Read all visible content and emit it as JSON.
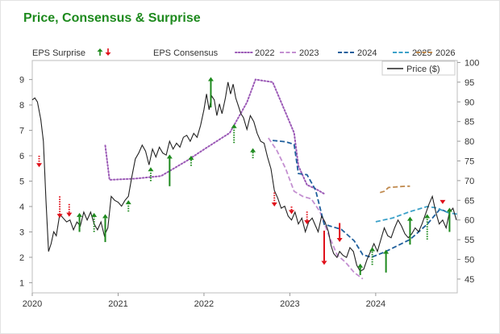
{
  "chart_data": {
    "type": "line",
    "title": "Price, Consensus & Surprise",
    "x_tick_labels": [
      "2020",
      "2021",
      "2022",
      "2023",
      "2024"
    ],
    "x_range": [
      2020.0,
      2024.95
    ],
    "eps_axis": {
      "range": [
        0.6,
        9.75
      ],
      "ticks": [
        1,
        2,
        3,
        4,
        5,
        6,
        7,
        8,
        9
      ]
    },
    "price_axis": {
      "range": [
        41.5,
        100.5
      ],
      "ticks": [
        45,
        50,
        55,
        60,
        65,
        70,
        75,
        80,
        85,
        90,
        95,
        100
      ]
    },
    "legend": {
      "surprise_label": "EPS Surprise",
      "consensus_label": "EPS Consensus",
      "price_label": "Price ($)",
      "up_color": "#1e8a1e",
      "down_color": "#e0101a"
    },
    "consensus_series": [
      {
        "name": "2022",
        "color": "#9b59b6",
        "dash": "dot",
        "points": [
          [
            2020.85,
            6.4
          ],
          [
            2020.9,
            5.05
          ],
          [
            2021.2,
            5.1
          ],
          [
            2021.5,
            5.2
          ],
          [
            2021.8,
            5.8
          ],
          [
            2022.0,
            6.25
          ],
          [
            2022.3,
            6.9
          ],
          [
            2022.5,
            8.1
          ],
          [
            2022.6,
            9.0
          ],
          [
            2022.8,
            8.9
          ],
          [
            2022.95,
            7.7
          ],
          [
            2023.05,
            6.9
          ],
          [
            2023.1,
            5.6
          ],
          [
            2023.2,
            4.85
          ],
          [
            2023.3,
            4.7
          ],
          [
            2023.4,
            4.5
          ]
        ]
      },
      {
        "name": "2023",
        "color": "#c490d1",
        "dash": "dash",
        "points": [
          [
            2022.75,
            6.7
          ],
          [
            2022.85,
            6.2
          ],
          [
            2022.95,
            5.5
          ],
          [
            2023.05,
            4.6
          ],
          [
            2023.15,
            4.4
          ],
          [
            2023.25,
            4.3
          ],
          [
            2023.35,
            3.8
          ],
          [
            2023.45,
            2.9
          ],
          [
            2023.55,
            2.1
          ],
          [
            2023.65,
            1.8
          ],
          [
            2023.75,
            1.4
          ],
          [
            2023.85,
            1.15
          ]
        ]
      },
      {
        "name": "2024",
        "color": "#1f5f9c",
        "dash": "dash",
        "points": [
          [
            2022.8,
            6.6
          ],
          [
            2022.95,
            6.55
          ],
          [
            2023.05,
            6.45
          ],
          [
            2023.1,
            5.3
          ],
          [
            2023.2,
            5.25
          ],
          [
            2023.3,
            4.65
          ],
          [
            2023.4,
            3.3
          ],
          [
            2023.6,
            3.1
          ],
          [
            2023.75,
            2.65
          ],
          [
            2023.85,
            2.1
          ],
          [
            2023.95,
            2.0
          ],
          [
            2024.1,
            2.2
          ],
          [
            2024.4,
            2.7
          ],
          [
            2024.6,
            3.3
          ],
          [
            2024.75,
            3.9
          ],
          [
            2024.82,
            3.8
          ]
        ]
      },
      {
        "name": "2025",
        "color": "#3ba1c9",
        "dash": "dash",
        "points": [
          [
            2024.0,
            3.4
          ],
          [
            2024.2,
            3.55
          ],
          [
            2024.4,
            3.8
          ],
          [
            2024.6,
            4.0
          ],
          [
            2024.7,
            3.95
          ],
          [
            2024.85,
            3.75
          ],
          [
            2024.95,
            3.7
          ]
        ]
      },
      {
        "name": "2026",
        "color": "#c08a4e",
        "dash": "dash",
        "points": [
          [
            2024.05,
            4.55
          ],
          [
            2024.1,
            4.6
          ],
          [
            2024.15,
            4.75
          ],
          [
            2024.35,
            4.8
          ],
          [
            2024.4,
            4.8
          ]
        ]
      }
    ],
    "price_series": {
      "name": "Price ($)",
      "color": "#222222",
      "points": [
        [
          2020.0,
          90.5
        ],
        [
          2020.03,
          91.0
        ],
        [
          2020.06,
          90.0
        ],
        [
          2020.1,
          85.5
        ],
        [
          2020.13,
          80.0
        ],
        [
          2020.16,
          65.0
        ],
        [
          2020.19,
          52.0
        ],
        [
          2020.22,
          54.0
        ],
        [
          2020.25,
          57.0
        ],
        [
          2020.28,
          56.0
        ],
        [
          2020.32,
          61.5
        ],
        [
          2020.36,
          60.5
        ],
        [
          2020.4,
          59.5
        ],
        [
          2020.44,
          60.0
        ],
        [
          2020.48,
          57.5
        ],
        [
          2020.52,
          59.5
        ],
        [
          2020.56,
          58.5
        ],
        [
          2020.6,
          62.0
        ],
        [
          2020.64,
          60.0
        ],
        [
          2020.68,
          62.0
        ],
        [
          2020.72,
          59.0
        ],
        [
          2020.76,
          57.5
        ],
        [
          2020.8,
          59.5
        ],
        [
          2020.84,
          56.0
        ],
        [
          2020.88,
          58.0
        ],
        [
          2020.92,
          66.0
        ],
        [
          2020.96,
          65.0
        ],
        [
          2021.0,
          64.5
        ],
        [
          2021.04,
          63.5
        ],
        [
          2021.08,
          65.0
        ],
        [
          2021.12,
          66.0
        ],
        [
          2021.16,
          71.0
        ],
        [
          2021.2,
          75.5
        ],
        [
          2021.24,
          77.0
        ],
        [
          2021.28,
          79.0
        ],
        [
          2021.32,
          77.5
        ],
        [
          2021.36,
          74.0
        ],
        [
          2021.4,
          78.0
        ],
        [
          2021.44,
          76.0
        ],
        [
          2021.48,
          78.5
        ],
        [
          2021.52,
          77.0
        ],
        [
          2021.56,
          76.5
        ],
        [
          2021.6,
          80.0
        ],
        [
          2021.64,
          78.0
        ],
        [
          2021.68,
          79.5
        ],
        [
          2021.72,
          78.5
        ],
        [
          2021.76,
          81.0
        ],
        [
          2021.8,
          81.5
        ],
        [
          2021.84,
          80.0
        ],
        [
          2021.88,
          82.0
        ],
        [
          2021.92,
          81.0
        ],
        [
          2021.96,
          84.0
        ],
        [
          2022.0,
          88.0
        ],
        [
          2022.03,
          92.0
        ],
        [
          2022.06,
          88.0
        ],
        [
          2022.09,
          91.5
        ],
        [
          2022.12,
          90.5
        ],
        [
          2022.15,
          86.5
        ],
        [
          2022.18,
          89.5
        ],
        [
          2022.21,
          87.0
        ],
        [
          2022.25,
          91.0
        ],
        [
          2022.28,
          95.0
        ],
        [
          2022.31,
          92.0
        ],
        [
          2022.34,
          94.5
        ],
        [
          2022.37,
          91.0
        ],
        [
          2022.4,
          89.0
        ],
        [
          2022.43,
          87.0
        ],
        [
          2022.46,
          86.0
        ],
        [
          2022.5,
          83.0
        ],
        [
          2022.54,
          86.5
        ],
        [
          2022.58,
          85.0
        ],
        [
          2022.62,
          82.0
        ],
        [
          2022.66,
          80.0
        ],
        [
          2022.7,
          79.5
        ],
        [
          2022.74,
          76.0
        ],
        [
          2022.78,
          73.0
        ],
        [
          2022.82,
          67.5
        ],
        [
          2022.86,
          65.5
        ],
        [
          2022.9,
          63.0
        ],
        [
          2022.94,
          63.5
        ],
        [
          2022.98,
          61.0
        ],
        [
          2023.02,
          60.0
        ],
        [
          2023.06,
          62.0
        ],
        [
          2023.1,
          59.0
        ],
        [
          2023.14,
          60.5
        ],
        [
          2023.18,
          57.0
        ],
        [
          2023.22,
          59.5
        ],
        [
          2023.26,
          60.5
        ],
        [
          2023.3,
          58.5
        ],
        [
          2023.33,
          57.0
        ],
        [
          2023.37,
          61.0
        ],
        [
          2023.41,
          59.5
        ],
        [
          2023.45,
          57.0
        ],
        [
          2023.48,
          53.5
        ],
        [
          2023.51,
          51.5
        ],
        [
          2023.55,
          50.5
        ],
        [
          2023.58,
          52.0
        ],
        [
          2023.62,
          51.0
        ],
        [
          2023.66,
          50.5
        ],
        [
          2023.7,
          53.0
        ],
        [
          2023.74,
          52.0
        ],
        [
          2023.78,
          48.5
        ],
        [
          2023.82,
          47.0
        ],
        [
          2023.86,
          47.5
        ],
        [
          2023.9,
          50.0
        ],
        [
          2023.94,
          52.0
        ],
        [
          2023.98,
          54.0
        ],
        [
          2024.02,
          52.0
        ],
        [
          2024.06,
          55.0
        ],
        [
          2024.1,
          58.0
        ],
        [
          2024.14,
          56.0
        ],
        [
          2024.18,
          55.5
        ],
        [
          2024.22,
          58.0
        ],
        [
          2024.26,
          60.0
        ],
        [
          2024.3,
          58.5
        ],
        [
          2024.34,
          56.5
        ],
        [
          2024.38,
          55.5
        ],
        [
          2024.42,
          56.5
        ],
        [
          2024.46,
          58.0
        ],
        [
          2024.5,
          57.0
        ],
        [
          2024.54,
          59.0
        ],
        [
          2024.58,
          61.5
        ],
        [
          2024.62,
          64.0
        ],
        [
          2024.66,
          66.0
        ],
        [
          2024.7,
          62.0
        ],
        [
          2024.74,
          59.0
        ],
        [
          2024.78,
          60.0
        ],
        [
          2024.82,
          58.0
        ],
        [
          2024.86,
          62.0
        ],
        [
          2024.9,
          63.0
        ],
        [
          2024.94,
          60.0
        ]
      ]
    },
    "surprise_arrows": [
      {
        "x": 2020.08,
        "from": 6.0,
        "to": 5.55,
        "dir": "down",
        "dotted": true
      },
      {
        "x": 2020.32,
        "from": 4.4,
        "to": 3.55,
        "dir": "down",
        "dotted": true
      },
      {
        "x": 2020.43,
        "from": 4.1,
        "to": 3.6,
        "dir": "down",
        "dotted": true
      },
      {
        "x": 2020.55,
        "from": 3.0,
        "to": 3.75,
        "dir": "up",
        "dotted": false
      },
      {
        "x": 2020.72,
        "from": 3.0,
        "to": 3.75,
        "dir": "up",
        "dotted": true
      },
      {
        "x": 2020.85,
        "from": 2.6,
        "to": 3.7,
        "dir": "up",
        "dotted": false
      },
      {
        "x": 2021.12,
        "from": 3.8,
        "to": 4.25,
        "dir": "up",
        "dotted": true
      },
      {
        "x": 2021.38,
        "from": 5.0,
        "to": 5.55,
        "dir": "up",
        "dotted": true
      },
      {
        "x": 2021.6,
        "from": 4.8,
        "to": 6.05,
        "dir": "up",
        "dotted": false
      },
      {
        "x": 2021.85,
        "from": 5.6,
        "to": 6.0,
        "dir": "up",
        "dotted": true
      },
      {
        "x": 2022.08,
        "from": 7.9,
        "to": 9.1,
        "dir": "up",
        "dotted": false
      },
      {
        "x": 2022.35,
        "from": 6.5,
        "to": 7.25,
        "dir": "up",
        "dotted": true
      },
      {
        "x": 2022.57,
        "from": 5.9,
        "to": 6.3,
        "dir": "up",
        "dotted": true
      },
      {
        "x": 2022.82,
        "from": 4.55,
        "to": 4.0,
        "dir": "down",
        "dotted": true
      },
      {
        "x": 2023.02,
        "from": 4.0,
        "to": 3.7,
        "dir": "down",
        "dotted": true
      },
      {
        "x": 2023.2,
        "from": 3.8,
        "to": 3.3,
        "dir": "down",
        "dotted": true
      },
      {
        "x": 2023.4,
        "from": 3.05,
        "to": 1.7,
        "dir": "down",
        "dotted": false
      },
      {
        "x": 2023.58,
        "from": 3.35,
        "to": 2.6,
        "dir": "down",
        "dotted": false
      },
      {
        "x": 2023.82,
        "from": 1.3,
        "to": 1.75,
        "dir": "up",
        "dotted": false
      },
      {
        "x": 2023.96,
        "from": 1.7,
        "to": 2.4,
        "dir": "up",
        "dotted": true
      },
      {
        "x": 2024.12,
        "from": 1.4,
        "to": 2.3,
        "dir": "up",
        "dotted": false
      },
      {
        "x": 2024.4,
        "from": 2.5,
        "to": 3.6,
        "dir": "up",
        "dotted": false
      },
      {
        "x": 2024.6,
        "from": 2.7,
        "to": 3.7,
        "dir": "up",
        "dotted": true
      },
      {
        "x": 2024.78,
        "from": 4.2,
        "to": 4.1,
        "dir": "down",
        "dotted": true
      },
      {
        "x": 2024.86,
        "from": 3.0,
        "to": 3.95,
        "dir": "up",
        "dotted": false
      }
    ],
    "grid": false,
    "legend_placement": "top"
  }
}
